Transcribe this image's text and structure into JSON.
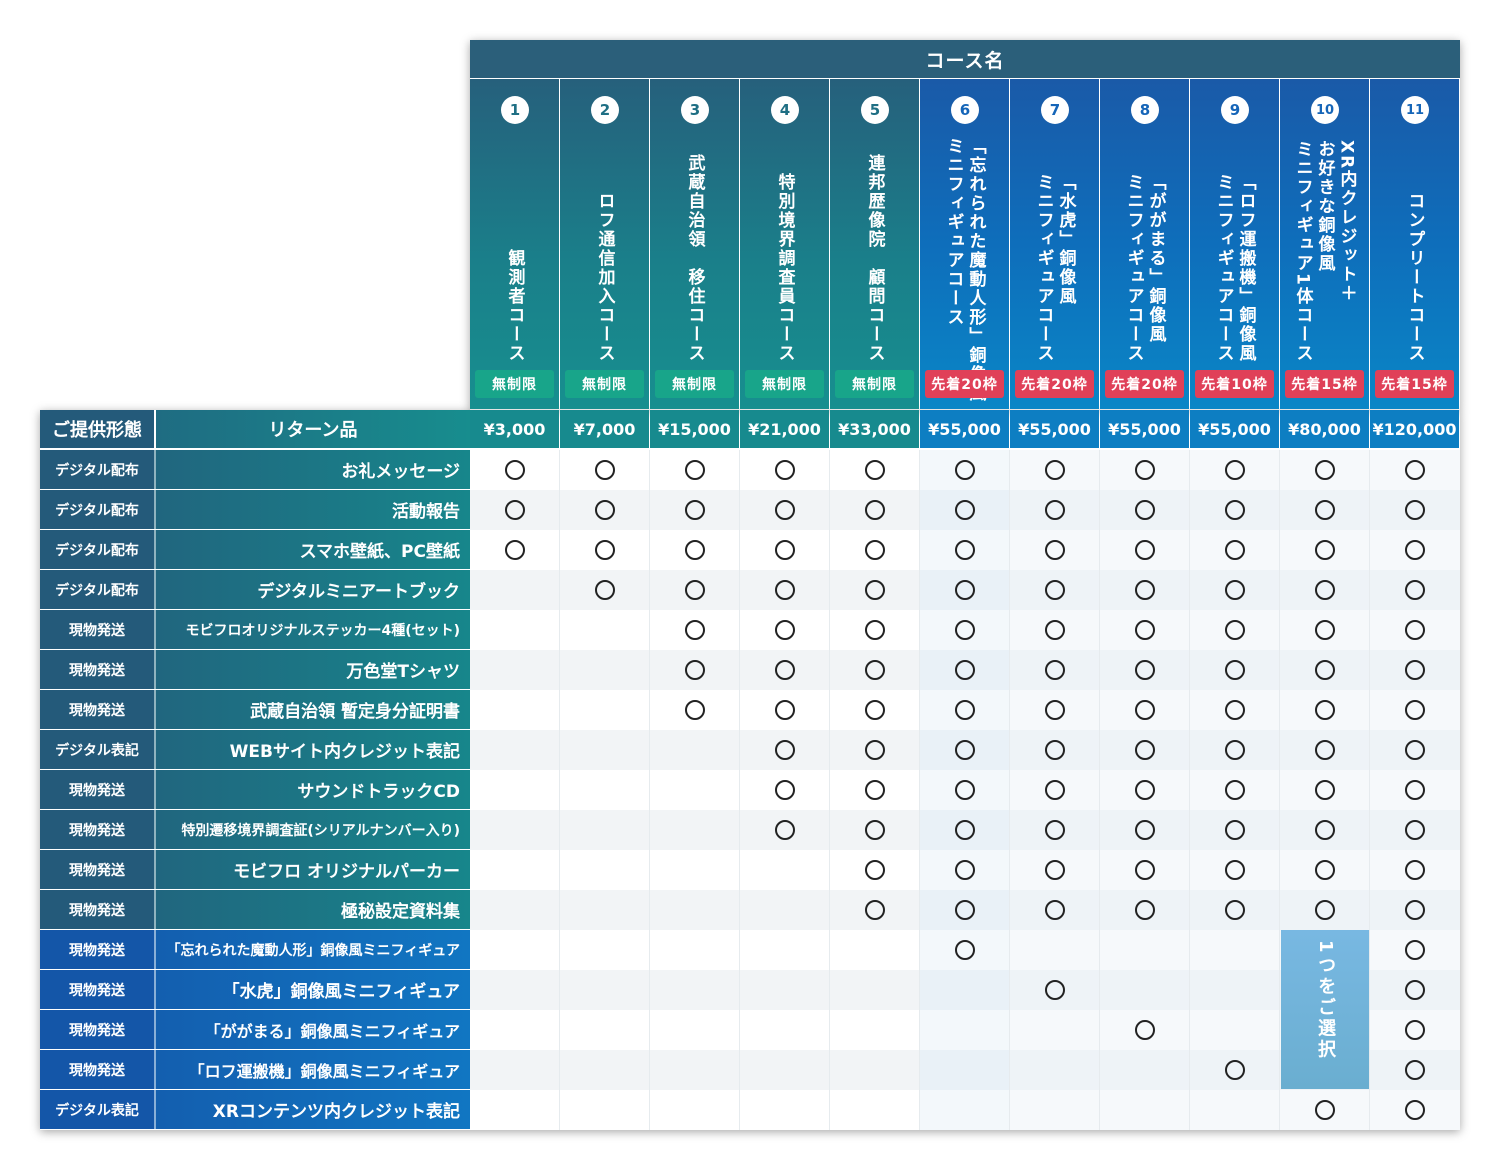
{
  "header": {
    "course_title": "コース名",
    "form_label": "ご提供形態",
    "return_label": "リターン品"
  },
  "courses": [
    {
      "num": "1",
      "name": "観測者コース",
      "limit": "無制限",
      "price": "¥3,000"
    },
    {
      "num": "2",
      "name": "ロフ通信加入コース",
      "limit": "無制限",
      "price": "¥7,000"
    },
    {
      "num": "3",
      "name": "武蔵自治領　移住コース",
      "limit": "無制限",
      "price": "¥15,000"
    },
    {
      "num": "4",
      "name": "特別境界調査員コース",
      "limit": "無制限",
      "price": "¥21,000"
    },
    {
      "num": "5",
      "name": "連邦歴像院　顧問コース",
      "limit": "無制限",
      "price": "¥33,000"
    },
    {
      "num": "6",
      "name": "「忘れられた魔動人形」銅像風\nミニフィギュアコース",
      "limit": "先着20枠",
      "price": "¥55,000"
    },
    {
      "num": "7",
      "name": "「水虎」銅像風\nミニフィギュアコース",
      "limit": "先着20枠",
      "price": "¥55,000"
    },
    {
      "num": "8",
      "name": "「ががまる」銅像風\nミニフィギュアコース",
      "limit": "先着20枠",
      "price": "¥55,000"
    },
    {
      "num": "9",
      "name": "「ロフ運搬機」銅像風\nミニフィギュアコース",
      "limit": "先着10枠",
      "price": "¥55,000"
    },
    {
      "num": "10",
      "name": "XR内クレジット＋\nお好きな銅像風\nミニフィギュア1体コース",
      "limit": "先着15枠",
      "price": "¥80,000"
    },
    {
      "num": "11",
      "name": "コンプリートコース",
      "limit": "先着15枠",
      "price": "¥120,000"
    }
  ],
  "rows": [
    {
      "form": "デジタル配布",
      "item": "お礼メッセージ",
      "marks": [
        1,
        1,
        1,
        1,
        1,
        1,
        1,
        1,
        1,
        1,
        1
      ]
    },
    {
      "form": "デジタル配布",
      "item": "活動報告",
      "marks": [
        1,
        1,
        1,
        1,
        1,
        1,
        1,
        1,
        1,
        1,
        1
      ]
    },
    {
      "form": "デジタル配布",
      "item": "スマホ壁紙、PC壁紙",
      "marks": [
        1,
        1,
        1,
        1,
        1,
        1,
        1,
        1,
        1,
        1,
        1
      ]
    },
    {
      "form": "デジタル配布",
      "item": "デジタルミニアートブック",
      "marks": [
        0,
        1,
        1,
        1,
        1,
        1,
        1,
        1,
        1,
        1,
        1
      ]
    },
    {
      "form": "現物発送",
      "item": "モビフロオリジナルステッカー4種(セット)",
      "marks": [
        0,
        0,
        1,
        1,
        1,
        1,
        1,
        1,
        1,
        1,
        1
      ]
    },
    {
      "form": "現物発送",
      "item": "万色堂Tシャツ",
      "marks": [
        0,
        0,
        1,
        1,
        1,
        1,
        1,
        1,
        1,
        1,
        1
      ]
    },
    {
      "form": "現物発送",
      "item": "武蔵自治領 暫定身分証明書",
      "marks": [
        0,
        0,
        1,
        1,
        1,
        1,
        1,
        1,
        1,
        1,
        1
      ]
    },
    {
      "form": "デジタル表記",
      "item": "WEBサイト内クレジット表記",
      "marks": [
        0,
        0,
        0,
        1,
        1,
        1,
        1,
        1,
        1,
        1,
        1
      ]
    },
    {
      "form": "現物発送",
      "item": "サウンドトラックCD",
      "marks": [
        0,
        0,
        0,
        1,
        1,
        1,
        1,
        1,
        1,
        1,
        1
      ]
    },
    {
      "form": "現物発送",
      "item": "特別遷移境界調査証(シリアルナンバー入り)",
      "marks": [
        0,
        0,
        0,
        1,
        1,
        1,
        1,
        1,
        1,
        1,
        1
      ]
    },
    {
      "form": "現物発送",
      "item": "モビフロ オリジナルパーカー",
      "marks": [
        0,
        0,
        0,
        0,
        1,
        1,
        1,
        1,
        1,
        1,
        1
      ]
    },
    {
      "form": "現物発送",
      "item": "極秘設定資料集",
      "marks": [
        0,
        0,
        0,
        0,
        1,
        1,
        1,
        1,
        1,
        1,
        1
      ]
    },
    {
      "form": "現物発送",
      "item": "「忘れられた魔動人形」銅像風ミニフィギュア",
      "marks": [
        0,
        0,
        0,
        0,
        0,
        1,
        0,
        0,
        0,
        0,
        1
      ]
    },
    {
      "form": "現物発送",
      "item": "「水虎」銅像風ミニフィギュア",
      "marks": [
        0,
        0,
        0,
        0,
        0,
        0,
        1,
        0,
        0,
        0,
        1
      ]
    },
    {
      "form": "現物発送",
      "item": "「ががまる」銅像風ミニフィギュア",
      "marks": [
        0,
        0,
        0,
        0,
        0,
        0,
        0,
        1,
        0,
        0,
        1
      ]
    },
    {
      "form": "現物発送",
      "item": "「ロフ運搬機」銅像風ミニフィギュア",
      "marks": [
        0,
        0,
        0,
        0,
        0,
        0,
        0,
        0,
        1,
        0,
        1
      ]
    },
    {
      "form": "デジタル表記",
      "item": "XRコンテンツ内クレジット表記",
      "marks": [
        0,
        0,
        0,
        0,
        0,
        0,
        0,
        0,
        0,
        1,
        1
      ]
    }
  ],
  "select_note": "1つをご選択",
  "mark_symbol": "○",
  "colors": {
    "teal_dark": "#245a7a",
    "teal_light": "#18908f",
    "blue_dark": "#1458b4",
    "blue_light": "#0b86c8",
    "badge_green": "#18a58a",
    "badge_red": "#e04058"
  }
}
